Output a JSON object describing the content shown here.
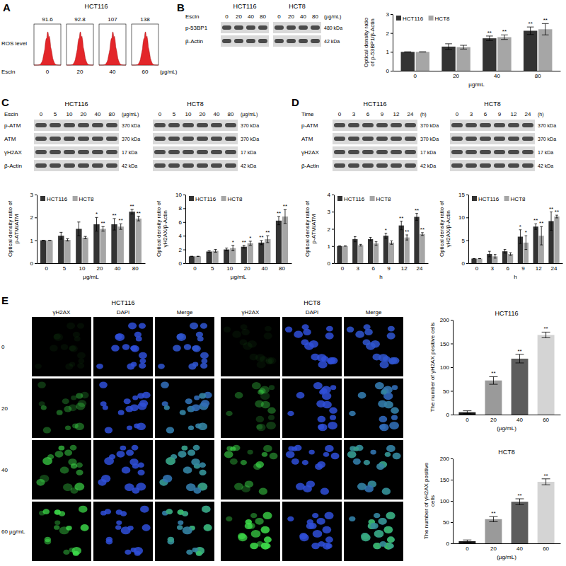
{
  "figure": {
    "A": {
      "letter": "A",
      "cell_line": "HCT116",
      "ylabel": "ROS level",
      "ros": [
        91.6,
        92.8,
        107,
        138
      ],
      "treatment": "Escin",
      "doses": [
        "0",
        "20",
        "40",
        "60"
      ],
      "unit": "(µg/mL)"
    },
    "B": {
      "letter": "B",
      "cell_lines": [
        "HCT116",
        "HCT8"
      ],
      "treatment": "Escin",
      "doses": [
        "0",
        "20",
        "40",
        "80"
      ],
      "unit": "(µg/mL)",
      "rows": [
        {
          "protein": "p-53BP1",
          "size": "480 kDa"
        },
        {
          "protein": "β-Actin",
          "size": "42 kDa"
        }
      ]
    },
    "C": {
      "letter": "C",
      "cell_lines": [
        "HCT116",
        "HCT8"
      ],
      "treatment": "Escin",
      "doses": [
        "0",
        "5",
        "10",
        "20",
        "40",
        "80"
      ],
      "unit": "(µg/mL)",
      "rows": [
        {
          "protein": "p-ATM",
          "size": "370 kDa"
        },
        {
          "protein": "ATM",
          "size": "370 kDa"
        },
        {
          "protein": "γH2AX",
          "size": "17 kDa"
        },
        {
          "protein": "β-Actin",
          "size": "42 kDa"
        }
      ]
    },
    "D": {
      "letter": "D",
      "cell_lines": [
        "HCT116",
        "HCT8"
      ],
      "treatment": "Time",
      "doses": [
        "0",
        "3",
        "6",
        "9",
        "12",
        "24"
      ],
      "unit": "(h)",
      "rows": [
        {
          "protein": "p-ATM",
          "size": "370 kDa"
        },
        {
          "protein": "ATM",
          "size": "370 kDa"
        },
        {
          "protein": "γH2AX",
          "size": "17 kDa"
        },
        {
          "protein": "β-Actin",
          "size": "42 kDa"
        }
      ]
    },
    "E": {
      "letter": "E",
      "groups": [
        {
          "cell_line": "HCT116",
          "channels": [
            "γH2AX",
            "DAPI",
            "Merge"
          ]
        },
        {
          "cell_line": "HCT8",
          "channels": [
            "γH2AX",
            "DAPI",
            "Merge"
          ]
        }
      ],
      "rows": [
        "0",
        "20",
        "40",
        "60 µg/mL"
      ]
    }
  },
  "chart_data": [
    {
      "type": "bar",
      "categories": [
        "0",
        "20",
        "40",
        "80"
      ],
      "xlabel": "µg/mL",
      "ylabel": "Optical density ratio of p-53BP1/β-Actin",
      "ylim": [
        0,
        3
      ],
      "yticks": [
        0,
        1,
        2,
        3
      ],
      "legend": "top-left",
      "series": [
        {
          "name": "HCT116",
          "color": "#333333",
          "values": [
            1,
            1.28,
            1.72,
            2.12
          ],
          "errors": [
            0,
            0.15,
            0.12,
            0.2
          ],
          "significance": [
            null,
            null,
            "**",
            "**"
          ]
        },
        {
          "name": "HCT8",
          "color": "#a6a6a6",
          "values": [
            1,
            1.25,
            1.78,
            2.2
          ],
          "errors": [
            0,
            0.1,
            0.12,
            0.3
          ],
          "significance": [
            null,
            null,
            "**",
            "**"
          ]
        }
      ]
    },
    {
      "type": "bar",
      "categories": [
        "0",
        "5",
        "10",
        "20",
        "40",
        "80"
      ],
      "xlabel": "µg/mL",
      "ylabel": "Optical density ratio of p-ATM/ATM",
      "ylim": [
        0,
        3
      ],
      "yticks": [
        0,
        1,
        2,
        3
      ],
      "legend": "top-left",
      "series": [
        {
          "name": "HCT116",
          "color": "#333333",
          "values": [
            1,
            1.2,
            1.5,
            1.7,
            1.7,
            2.25
          ],
          "errors": [
            0,
            0.15,
            0.3,
            0.3,
            0.25,
            0.1
          ],
          "significance": [
            null,
            null,
            null,
            "*",
            "**",
            "**"
          ]
        },
        {
          "name": "HCT8",
          "color": "#a6a6a6",
          "values": [
            1,
            1.02,
            1.12,
            1.5,
            1.6,
            1.95
          ],
          "errors": [
            0,
            0.05,
            0.05,
            0.1,
            0.12,
            0.1
          ],
          "significance": [
            null,
            null,
            null,
            "**",
            "**",
            "**"
          ]
        }
      ]
    },
    {
      "type": "bar",
      "categories": [
        "0",
        "5",
        "10",
        "20",
        "40",
        "80"
      ],
      "xlabel": "µg/mL",
      "ylabel": "Optical density ratio of γH2AX/β-Actin",
      "ylim": [
        0,
        10
      ],
      "yticks": [
        0,
        2,
        4,
        6,
        8,
        10
      ],
      "legend": "top-left",
      "series": [
        {
          "name": "HCT116",
          "color": "#333333",
          "values": [
            1,
            1.7,
            2.0,
            2.4,
            3.0,
            6.2
          ],
          "errors": [
            0,
            0.1,
            0.2,
            0.2,
            0.3,
            0.6
          ],
          "significance": [
            null,
            null,
            null,
            "**",
            "**",
            "**"
          ]
        },
        {
          "name": "HCT8",
          "color": "#a6a6a6",
          "values": [
            1,
            1.8,
            2.2,
            2.9,
            3.5,
            6.8
          ],
          "errors": [
            0,
            0.2,
            0.4,
            0.3,
            0.5,
            1.0
          ],
          "significance": [
            null,
            null,
            "*",
            "*",
            "**",
            "**"
          ]
        }
      ]
    },
    {
      "type": "bar",
      "categories": [
        "0",
        "3",
        "6",
        "9",
        "12",
        "24"
      ],
      "xlabel": "h",
      "ylabel": "Optical density ratio of p-ATM/ATM",
      "ylim": [
        0,
        4
      ],
      "yticks": [
        0,
        1,
        2,
        3,
        4
      ],
      "legend": "top-left",
      "series": [
        {
          "name": "HCT116",
          "color": "#333333",
          "values": [
            1,
            1.4,
            1.4,
            1.6,
            2.2,
            2.7
          ],
          "errors": [
            0,
            0.15,
            0.1,
            0.15,
            0.25,
            0.2
          ],
          "significance": [
            null,
            null,
            null,
            "*",
            "**",
            "**"
          ]
        },
        {
          "name": "HCT8",
          "color": "#a6a6a6",
          "values": [
            1,
            1.05,
            1.15,
            1.2,
            1.5,
            1.7
          ],
          "errors": [
            0,
            0.05,
            0.1,
            0.1,
            0.15,
            0.08
          ],
          "significance": [
            null,
            null,
            null,
            null,
            "**",
            "**"
          ]
        }
      ]
    },
    {
      "type": "bar",
      "categories": [
        "0",
        "3",
        "6",
        "9",
        "12",
        "24"
      ],
      "xlabel": "h",
      "ylabel": "Optical density ratio of γH2AX/β-Actin",
      "ylim": [
        0,
        15
      ],
      "yticks": [
        0,
        5,
        10,
        15
      ],
      "legend": "top-left",
      "series": [
        {
          "name": "HCT116",
          "color": "#333333",
          "values": [
            1,
            2.0,
            2.6,
            5.8,
            8.0,
            9.2
          ],
          "errors": [
            0,
            0.6,
            0.4,
            1.5,
            0.6,
            2.0
          ],
          "significance": [
            null,
            null,
            null,
            "*",
            "**",
            "**"
          ]
        },
        {
          "name": "HCT8",
          "color": "#a6a6a6",
          "values": [
            1,
            1.5,
            2.0,
            4.5,
            6.0,
            10.2
          ],
          "errors": [
            0,
            0.4,
            0.3,
            1.5,
            2.0,
            0.3
          ],
          "significance": [
            null,
            null,
            null,
            "*",
            "**",
            "**"
          ]
        }
      ]
    },
    {
      "type": "bar",
      "title": "HCT116",
      "categories": [
        "0",
        "20",
        "40",
        "60"
      ],
      "xlabel": "(µg/mL)",
      "ylabel": "The number of γH2AX positive cells",
      "ylim": [
        0,
        200
      ],
      "yticks": [
        0,
        50,
        100,
        150,
        200
      ],
      "values": [
        5,
        72,
        118,
        168
      ],
      "errors": [
        3,
        8,
        9,
        6
      ],
      "significance": [
        null,
        "**",
        "**",
        "**"
      ],
      "colors": [
        "#1a1a1a",
        "#9a9a9a",
        "#5c5c5c",
        "#d4d4d4"
      ]
    },
    {
      "type": "bar",
      "title": "HCT8",
      "categories": [
        "0",
        "20",
        "40",
        "60"
      ],
      "xlabel": "(µg/mL)",
      "ylabel": "The number of γH2AX positive cells",
      "ylim": [
        0,
        200
      ],
      "yticks": [
        0,
        50,
        100,
        150,
        200
      ],
      "values": [
        5,
        57,
        98,
        145
      ],
      "errors": [
        3,
        6,
        7,
        7
      ],
      "significance": [
        null,
        "**",
        "**",
        "**"
      ],
      "colors": [
        "#1a1a1a",
        "#9a9a9a",
        "#5c5c5c",
        "#d4d4d4"
      ]
    }
  ]
}
